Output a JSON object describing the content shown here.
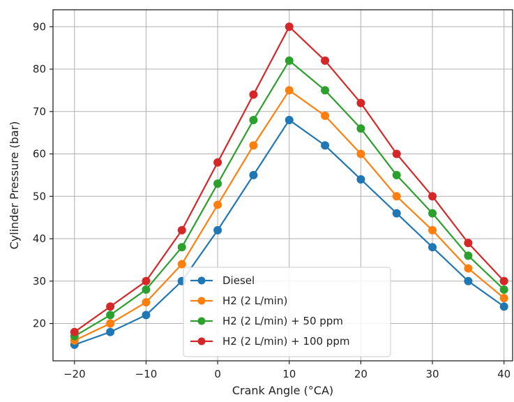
{
  "chart_data": {
    "type": "line",
    "title": "",
    "xlabel": "Crank Angle (°CA)",
    "ylabel": "Cylinder Pressure (bar)",
    "x": [
      -20,
      -15,
      -10,
      -5,
      0,
      5,
      10,
      15,
      20,
      25,
      30,
      35,
      40
    ],
    "xlim": [
      -23,
      41.2
    ],
    "ylim": [
      11.2,
      94
    ],
    "xticks": [
      -20,
      -10,
      0,
      10,
      20,
      30,
      40
    ],
    "yticks": [
      20,
      30,
      40,
      50,
      60,
      70,
      80,
      90
    ],
    "xtick_labels": [
      "−20",
      "−10",
      "0",
      "10",
      "20",
      "30",
      "40"
    ],
    "ytick_labels": [
      "20",
      "30",
      "40",
      "50",
      "60",
      "70",
      "80",
      "90"
    ],
    "grid": true,
    "legend_position": "lower-center",
    "series": [
      {
        "name": "Diesel",
        "color": "#1f77b4",
        "values": [
          15,
          18,
          22,
          30,
          42,
          55,
          68,
          62,
          54,
          46,
          38,
          30,
          24
        ]
      },
      {
        "name": "H2 (2 L/min)",
        "color": "#ff7f0e",
        "values": [
          16,
          20,
          25,
          34,
          48,
          62,
          75,
          69,
          60,
          50,
          42,
          33,
          26
        ]
      },
      {
        "name": "H2 (2 L/min) + 50 ppm",
        "color": "#2ca02c",
        "values": [
          17,
          22,
          28,
          38,
          53,
          68,
          82,
          75,
          66,
          55,
          46,
          36,
          28
        ]
      },
      {
        "name": "H2 (2 L/min) + 100 ppm",
        "color": "#d62728",
        "values": [
          18,
          24,
          30,
          42,
          58,
          74,
          90,
          82,
          72,
          60,
          50,
          39,
          30
        ]
      }
    ]
  }
}
